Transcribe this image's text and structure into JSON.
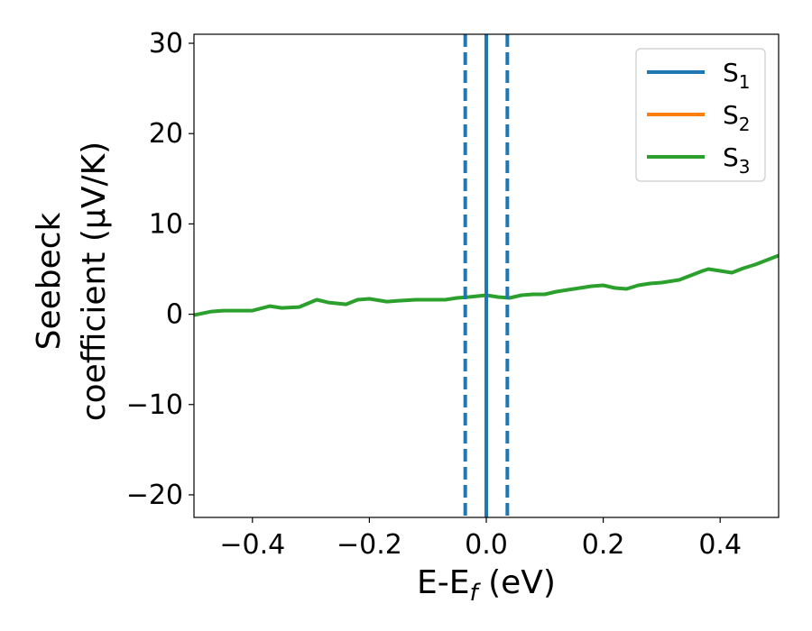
{
  "chart_data": {
    "type": "line",
    "xlabel": "E-E_f (eV)",
    "xlabel_parts": {
      "base": "E-E",
      "sub": "f",
      "unit": " (eV)"
    },
    "ylabel_line1": "Seebeck",
    "ylabel_line2": "coefficient  (μV/K)",
    "xlim": [
      -0.5,
      0.5
    ],
    "ylim": [
      -22.5,
      31
    ],
    "xticks": [
      -0.4,
      -0.2,
      0.0,
      0.2,
      0.4
    ],
    "xtick_labels": [
      "−0.4",
      "−0.2",
      "0.0",
      "0.2",
      "0.4"
    ],
    "yticks": [
      -20,
      -10,
      0,
      10,
      20,
      30
    ],
    "ytick_labels": [
      "−20",
      "−10",
      "0",
      "10",
      "20",
      "30"
    ],
    "grid": false,
    "legend_position": "top-right",
    "series": [
      {
        "name": "S1",
        "label_base": "S",
        "label_sub": "1",
        "color": "#1f77b4",
        "x": [],
        "y": []
      },
      {
        "name": "S2",
        "label_base": "S",
        "label_sub": "2",
        "color": "#ff7f0e",
        "x": [],
        "y": []
      },
      {
        "name": "S3",
        "label_base": "S",
        "label_sub": "3",
        "color": "#2ca02c",
        "x": [
          -0.5,
          -0.47,
          -0.45,
          -0.43,
          -0.4,
          -0.37,
          -0.35,
          -0.32,
          -0.29,
          -0.27,
          -0.24,
          -0.22,
          -0.2,
          -0.17,
          -0.15,
          -0.12,
          -0.1,
          -0.07,
          -0.05,
          -0.03,
          0.0,
          0.02,
          0.04,
          0.06,
          0.08,
          0.1,
          0.12,
          0.15,
          0.18,
          0.2,
          0.22,
          0.24,
          0.26,
          0.28,
          0.3,
          0.33,
          0.35,
          0.37,
          0.38,
          0.4,
          0.42,
          0.44,
          0.46,
          0.48,
          0.5
        ],
        "y": [
          -0.1,
          0.3,
          0.4,
          0.4,
          0.4,
          0.9,
          0.7,
          0.8,
          1.6,
          1.3,
          1.1,
          1.6,
          1.7,
          1.4,
          1.5,
          1.6,
          1.6,
          1.6,
          1.8,
          1.9,
          2.1,
          1.9,
          1.8,
          2.1,
          2.2,
          2.2,
          2.5,
          2.8,
          3.1,
          3.2,
          2.9,
          2.8,
          3.2,
          3.4,
          3.5,
          3.8,
          4.3,
          4.8,
          5.0,
          4.8,
          4.6,
          5.1,
          5.5,
          6.0,
          6.5
        ]
      }
    ],
    "vlines": [
      {
        "x": 0.0,
        "color": "#000000",
        "style": "dashed"
      },
      {
        "x": 0.0,
        "color": "#1f77b4",
        "style": "solid"
      },
      {
        "x": -0.036,
        "color": "#1f77b4",
        "style": "dashed"
      },
      {
        "x": 0.036,
        "color": "#1f77b4",
        "style": "dashed"
      }
    ]
  }
}
